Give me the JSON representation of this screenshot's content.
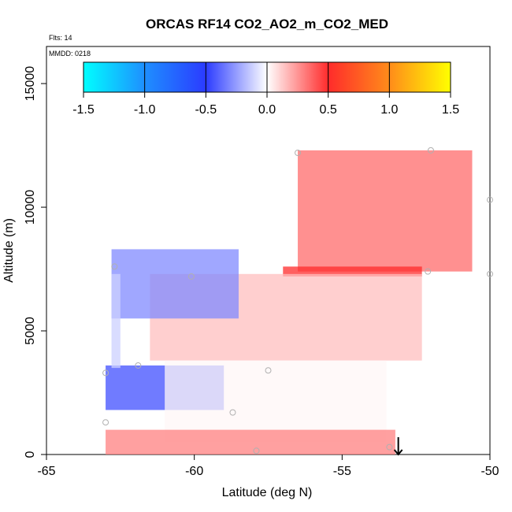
{
  "chart_data": {
    "type": "heatmap",
    "title": "ORCAS RF14 CO2_AO2_m_CO2_MED",
    "flights_label": "Flts: 14",
    "date_label": "MMDD: 0218",
    "xlabel": "Latitude (deg N)",
    "ylabel": "Altitude (m)",
    "xlim": [
      -65,
      -50
    ],
    "ylim": [
      0,
      16500
    ],
    "x_ticks": [
      -65,
      -60,
      -55,
      -50
    ],
    "x_tick_labels": [
      "-65",
      "-60",
      "-55",
      "-50"
    ],
    "y_ticks": [
      0,
      5000,
      10000,
      15000
    ],
    "y_tick_labels": [
      "0",
      "5000",
      "10000",
      "15000"
    ],
    "colorbar": {
      "range": [
        -1.5,
        1.5
      ],
      "ticks": [
        -1.5,
        -1.0,
        -0.5,
        0.0,
        0.5,
        1.0,
        1.5
      ],
      "tick_labels": [
        "-1.5",
        "-1.0",
        "-0.5",
        "0.0",
        "0.5",
        "1.0",
        "1.5"
      ],
      "colors": [
        "#00ffff",
        "#1e8fff",
        "#2b3bff",
        "#ffffff",
        "#ff2b2b",
        "#ff8c1a",
        "#ffff00"
      ]
    },
    "regions": [
      {
        "name": "upper-red-wedge",
        "lat_min": -56.5,
        "lat_max": -50.6,
        "alt_min": 7400,
        "alt_max": 12300,
        "value": 0.35
      },
      {
        "name": "mid-red-band",
        "lat_min": -57.0,
        "lat_max": -52.3,
        "alt_min": 7200,
        "alt_max": 7600,
        "value": 0.5
      },
      {
        "name": "mid-red-wedge",
        "lat_min": -61.5,
        "lat_max": -52.3,
        "alt_min": 3800,
        "alt_max": 7300,
        "value": 0.15
      },
      {
        "name": "upper-blue-plume",
        "lat_min": -62.8,
        "lat_max": -58.5,
        "alt_min": 5500,
        "alt_max": 8300,
        "value": -0.3
      },
      {
        "name": "lower-blue-patch",
        "lat_min": -63.0,
        "lat_max": -59.0,
        "alt_min": 1800,
        "alt_max": 3600,
        "value": -0.45
      },
      {
        "name": "vertical-blue-column",
        "lat_min": -62.8,
        "lat_max": -62.5,
        "alt_min": 3500,
        "alt_max": 7300,
        "value": -0.12
      },
      {
        "name": "lower-white-wedge",
        "lat_min": -61.0,
        "lat_max": -53.5,
        "alt_min": 500,
        "alt_max": 3800,
        "value": 0.02
      },
      {
        "name": "surface-red-band",
        "lat_min": -63.0,
        "lat_max": -53.2,
        "alt_min": 0,
        "alt_max": 1000,
        "value": 0.3
      }
    ],
    "sample_points": [
      {
        "lat": -56.5,
        "alt": 12200
      },
      {
        "lat": -52.0,
        "alt": 12300
      },
      {
        "lat": -50.0,
        "alt": 10300
      },
      {
        "lat": -62.7,
        "alt": 7600
      },
      {
        "lat": -60.1,
        "alt": 7200
      },
      {
        "lat": -52.1,
        "alt": 7400
      },
      {
        "lat": -50.0,
        "alt": 7300
      },
      {
        "lat": -61.9,
        "alt": 3600
      },
      {
        "lat": -57.5,
        "alt": 3400
      },
      {
        "lat": -63.0,
        "alt": 3300
      },
      {
        "lat": -58.7,
        "alt": 1700
      },
      {
        "lat": -63.0,
        "alt": 1300
      },
      {
        "lat": -53.4,
        "alt": 300
      },
      {
        "lat": -57.9,
        "alt": 150
      }
    ],
    "arrow": {
      "lat": -53.1,
      "alt_from": 700,
      "alt_to": 0
    }
  }
}
